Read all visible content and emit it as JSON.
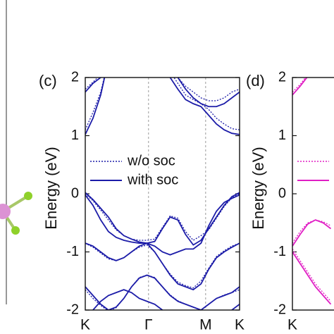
{
  "chart_data": [
    {
      "type": "line",
      "panel_label": "(c)",
      "ylabel": "Energy (eV)",
      "x": [
        0,
        0.05,
        0.1,
        0.15,
        0.2,
        0.25,
        0.3,
        0.35,
        0.4,
        0.45,
        0.5,
        0.55,
        0.6,
        0.65,
        0.7,
        0.75,
        0.8,
        0.85,
        0.9,
        0.95,
        1
      ],
      "xlim": [
        0,
        1
      ],
      "ylim": [
        -2,
        2
      ],
      "xticks": [
        {
          "value": 0,
          "label": "K"
        },
        {
          "value": 0.41,
          "label": "Γ"
        },
        {
          "value": 0.78,
          "label": "M"
        },
        {
          "value": 1,
          "label": "K"
        }
      ],
      "yticks": [
        -2,
        -1,
        0,
        1,
        2
      ],
      "grid": true,
      "legend": "center left",
      "series": [
        {
          "name": "w/o soc",
          "color": "#1c1ca8",
          "dash": "dotted",
          "bands": [
            [
              1.1,
              1.4,
              1.75,
              2.3,
              2.6,
              2.6,
              2.6,
              2.5,
              2.4,
              2.4,
              2.3,
              2.1,
              1.9,
              1.7,
              1.62,
              1.55,
              1.45,
              1.3,
              1.2,
              1.12,
              1.1
            ],
            [
              1.8,
              1.92,
              2.05,
              2.4,
              2.8,
              2.8,
              2.8,
              2.8,
              2.8,
              2.8,
              2.6,
              2.3,
              2.0,
              1.85,
              1.75,
              1.65,
              1.6,
              1.6,
              1.65,
              1.75,
              1.8
            ],
            [
              0.0,
              -0.12,
              -0.28,
              -0.45,
              -0.62,
              -0.72,
              -0.78,
              -0.8,
              -0.8,
              -0.78,
              -0.58,
              -0.38,
              -0.42,
              -0.65,
              -0.8,
              -0.72,
              -0.62,
              -0.42,
              -0.22,
              -0.07,
              0.0
            ],
            [
              -0.85,
              -0.92,
              -1.02,
              -1.12,
              -1.15,
              -1.1,
              -1.0,
              -0.92,
              -0.88,
              -1.0,
              -1.2,
              -1.38,
              -1.52,
              -1.58,
              -1.62,
              -1.5,
              -1.28,
              -1.08,
              -0.98,
              -0.9,
              -0.85
            ],
            [
              -1.65,
              -1.8,
              -1.92,
              -2.02,
              -1.96,
              -1.8,
              -1.6,
              -1.44,
              -1.4,
              -1.44,
              -1.6,
              -1.74,
              -1.84,
              -1.9,
              -1.95,
              -2.0,
              -1.9,
              -1.8,
              -1.74,
              -1.7,
              -1.65
            ]
          ]
        },
        {
          "name": "with soc",
          "color": "#1c1ca8",
          "dash": "solid",
          "bands": [
            [
              1.02,
              1.3,
              1.7,
              2.3,
              2.6,
              2.6,
              2.6,
              2.5,
              2.4,
              2.4,
              2.3,
              2.0,
              1.8,
              1.62,
              1.55,
              1.5,
              1.35,
              1.2,
              1.1,
              1.04,
              1.02
            ],
            [
              1.75,
              1.9,
              2.0,
              2.4,
              2.8,
              2.8,
              2.8,
              2.8,
              2.8,
              2.8,
              2.6,
              2.3,
              2.0,
              1.8,
              1.65,
              1.55,
              1.5,
              1.5,
              1.55,
              1.65,
              1.75
            ],
            [
              0.02,
              -0.1,
              -0.25,
              -0.4,
              -0.6,
              -0.72,
              -0.78,
              -0.83,
              -0.85,
              -0.82,
              -0.6,
              -0.4,
              -0.45,
              -0.7,
              -0.88,
              -0.8,
              -0.6,
              -0.4,
              -0.2,
              -0.05,
              0.02
            ],
            [
              -0.02,
              -0.2,
              -0.45,
              -0.65,
              -0.75,
              -0.8,
              -0.83,
              -0.85,
              -0.85,
              -0.9,
              -1.0,
              -1.05,
              -1.0,
              -0.95,
              -0.95,
              -0.85,
              -0.55,
              -0.3,
              -0.15,
              -0.08,
              -0.02
            ],
            [
              -0.85,
              -0.9,
              -1.0,
              -1.1,
              -1.15,
              -1.1,
              -1.0,
              -0.9,
              -0.85,
              -1.0,
              -1.2,
              -1.4,
              -1.55,
              -1.6,
              -1.65,
              -1.55,
              -1.3,
              -1.1,
              -1.0,
              -0.92,
              -0.85
            ],
            [
              -1.6,
              -1.75,
              -1.9,
              -2.0,
              -1.95,
              -1.8,
              -1.6,
              -1.45,
              -1.4,
              -1.45,
              -1.6,
              -1.75,
              -1.85,
              -1.9,
              -1.95,
              -2.0,
              -1.9,
              -1.8,
              -1.75,
              -1.7,
              -1.6
            ],
            [
              -2.1,
              -2.0,
              -1.85,
              -1.75,
              -1.7,
              -1.65,
              -1.7,
              -1.8,
              -1.85,
              -1.9,
              -2.0,
              -2.1,
              -2.2,
              -2.2,
              -2.2,
              -2.2,
              -2.2,
              -2.2,
              -2.1,
              -2.0,
              -1.9
            ]
          ]
        }
      ]
    },
    {
      "type": "line",
      "panel_label": "(d)",
      "ylabel": "Energy (eV)",
      "x": [
        0,
        0.05,
        0.1,
        0.15,
        0.2,
        0.25
      ],
      "xlim": [
        0,
        1
      ],
      "ylim": [
        -2,
        2
      ],
      "xticks": [
        {
          "value": 0,
          "label": "K"
        }
      ],
      "yticks": [
        -2,
        -1,
        0,
        1,
        2
      ],
      "grid": true,
      "legend": "center left",
      "series": [
        {
          "color": "#e01ec4",
          "dash": "dotted",
          "bands": [
            [
              1.75,
              1.88,
              2.05,
              2.25,
              2.45,
              2.6
            ],
            [
              -0.85,
              -0.65,
              -0.5,
              -0.45,
              -0.48,
              -0.55
            ],
            [
              -0.95,
              -1.15,
              -1.35,
              -1.55,
              -1.7,
              -1.85
            ]
          ]
        },
        {
          "color": "#e01ec4",
          "dash": "solid",
          "bands": [
            [
              1.7,
              1.85,
              2.02,
              2.2,
              2.4,
              2.6
            ],
            [
              -0.9,
              -0.7,
              -0.52,
              -0.45,
              -0.5,
              -0.6
            ],
            [
              -1.0,
              -1.2,
              -1.4,
              -1.6,
              -1.75,
              -1.9
            ]
          ]
        }
      ]
    }
  ]
}
